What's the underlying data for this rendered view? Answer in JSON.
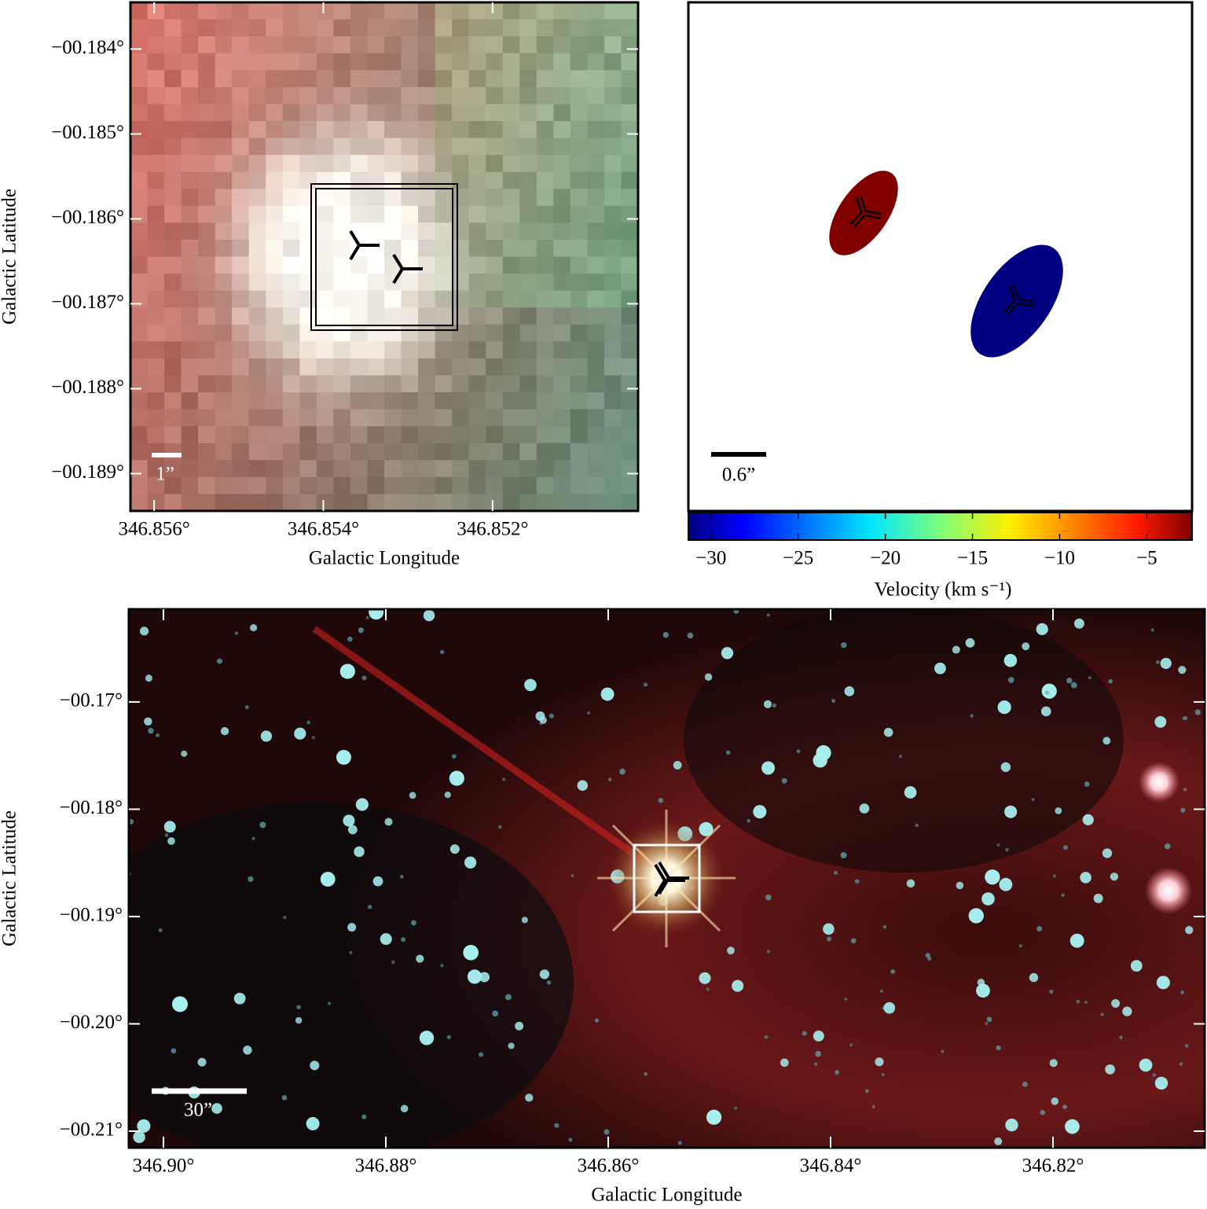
{
  "chart_data": [
    {
      "type": "image",
      "xlabel": "Galactic Longitude",
      "ylabel": "Galactic Latitude",
      "xlim": [
        346.85628,
        346.85028
      ],
      "ylim": [
        -0.18944,
        -0.18345
      ],
      "xticks": [
        {
          "value": 346.856,
          "label": "346.856°"
        },
        {
          "value": 346.854,
          "label": "346.854°"
        },
        {
          "value": 346.852,
          "label": "346.852°"
        }
      ],
      "yticks": [
        {
          "value": -0.184,
          "label": "−00.184°"
        },
        {
          "value": -0.185,
          "label": "−00.185°"
        },
        {
          "value": -0.186,
          "label": "−00.186°"
        },
        {
          "value": -0.187,
          "label": "−00.187°"
        },
        {
          "value": -0.188,
          "label": "−00.188°"
        },
        {
          "value": -0.189,
          "label": "−00.189°"
        }
      ],
      "scalebar_label": "1”"
    },
    {
      "type": "ellipses",
      "values": [
        -3,
        -30
      ],
      "colors": [
        "#800000",
        "#000080"
      ],
      "clim": [
        -31.3,
        -2.4
      ],
      "cticks": [
        {
          "value": -30,
          "label": "−30"
        },
        {
          "value": -25,
          "label": "−25"
        },
        {
          "value": -20,
          "label": "−20"
        },
        {
          "value": -15,
          "label": "−15"
        },
        {
          "value": -10,
          "label": "−10"
        },
        {
          "value": -5,
          "label": "−5"
        }
      ],
      "clabel": "Velocity (km s⁻¹)",
      "scalebar_label": "0.6”"
    },
    {
      "type": "image",
      "xlabel": "Galactic Longitude",
      "ylabel": "Galactic Latitude",
      "xlim": [
        346.90311,
        346.80636
      ],
      "ylim": [
        -0.21154,
        -0.16136
      ],
      "xticks": [
        {
          "value": 346.9,
          "label": "346.90°"
        },
        {
          "value": 346.88,
          "label": "346.88°"
        },
        {
          "value": 346.86,
          "label": "346.86°"
        },
        {
          "value": 346.84,
          "label": "346.84°"
        },
        {
          "value": 346.82,
          "label": "346.82°"
        }
      ],
      "yticks": [
        {
          "value": -0.17,
          "label": "−00.17°"
        },
        {
          "value": -0.18,
          "label": "−00.18°"
        },
        {
          "value": -0.19,
          "label": "−00.19°"
        },
        {
          "value": -0.2,
          "label": "−00.20°"
        },
        {
          "value": -0.21,
          "label": "−00.21°"
        }
      ],
      "scalebar_label": "30”"
    }
  ]
}
